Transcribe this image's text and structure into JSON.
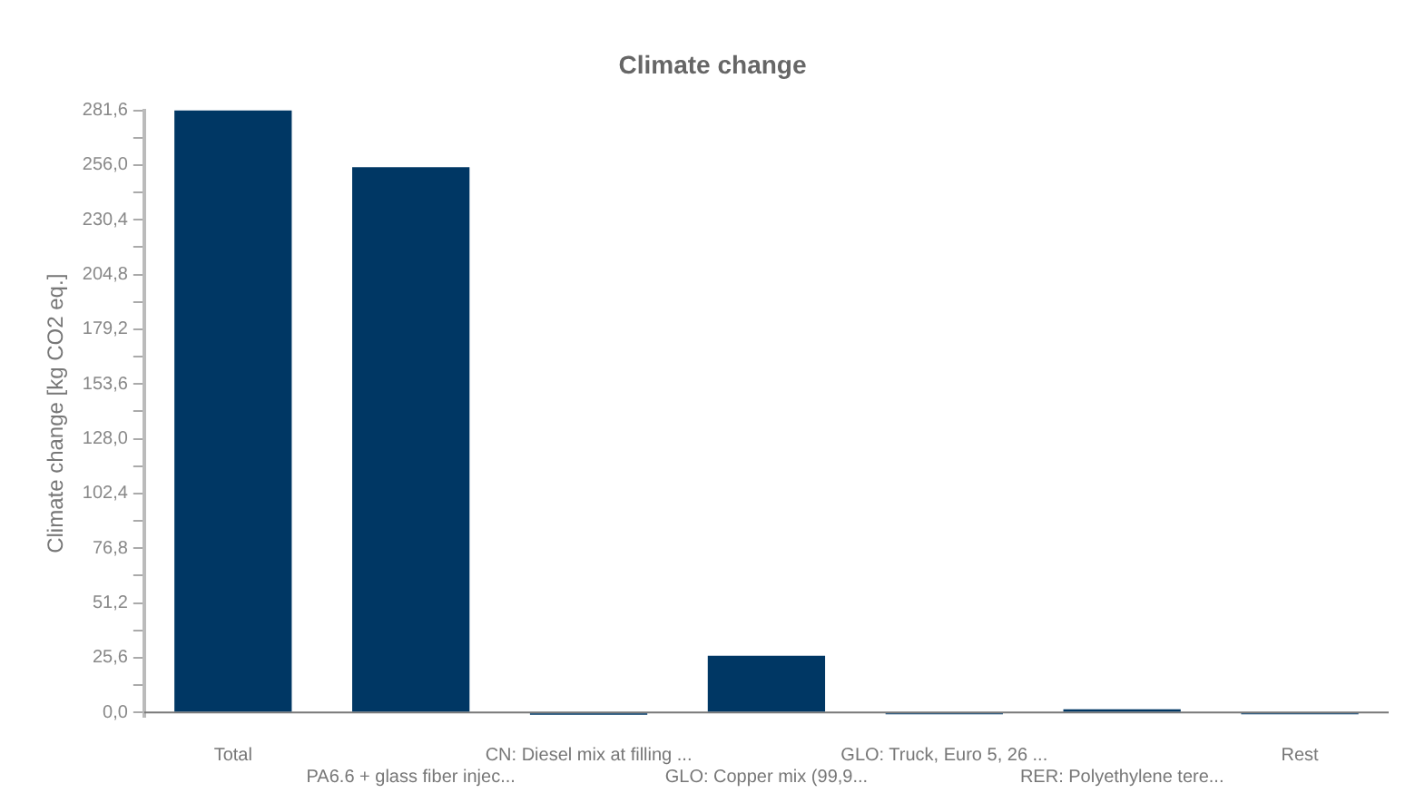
{
  "chart_data": {
    "type": "bar",
    "title": "Climate change",
    "ylabel": "Climate change [kg CO2 eq.]",
    "categories": [
      "Total",
      "PA6.6 + glass fiber injec...",
      "CN: Diesel mix at filling ...",
      "GLO: Copper mix (99,9...",
      "GLO: Truck, Euro 5, 26 ...",
      "RER: Polyethylene tere...",
      "Rest"
    ],
    "values": [
      281.6,
      255,
      -1,
      26.5,
      -0.8,
      1.5,
      -0.8
    ],
    "color": "#003764",
    "ylim": [
      -2,
      281.6
    ],
    "yticks": [
      {
        "value": 0,
        "label": "0,0"
      },
      {
        "value": 12.8,
        "label": null
      },
      {
        "value": 25.6,
        "label": "25,6"
      },
      {
        "value": 38.4,
        "label": null
      },
      {
        "value": 51.2,
        "label": "51,2"
      },
      {
        "value": 64,
        "label": null
      },
      {
        "value": 76.8,
        "label": "76,8"
      },
      {
        "value": 89.6,
        "label": null
      },
      {
        "value": 102.4,
        "label": "102,4"
      },
      {
        "value": 115.2,
        "label": null
      },
      {
        "value": 128,
        "label": "128,0"
      },
      {
        "value": 140.8,
        "label": null
      },
      {
        "value": 153.6,
        "label": "153,6"
      },
      {
        "value": 166.4,
        "label": null
      },
      {
        "value": 179.2,
        "label": "179,2"
      },
      {
        "value": 192,
        "label": null
      },
      {
        "value": 204.8,
        "label": "204,8"
      },
      {
        "value": 217.6,
        "label": null
      },
      {
        "value": 230.4,
        "label": "230,4"
      },
      {
        "value": 243.2,
        "label": null
      },
      {
        "value": 256,
        "label": "256,0"
      },
      {
        "value": 268.8,
        "label": null
      },
      {
        "value": 281.6,
        "label": "281,6"
      }
    ],
    "grid": false,
    "legend": false
  }
}
